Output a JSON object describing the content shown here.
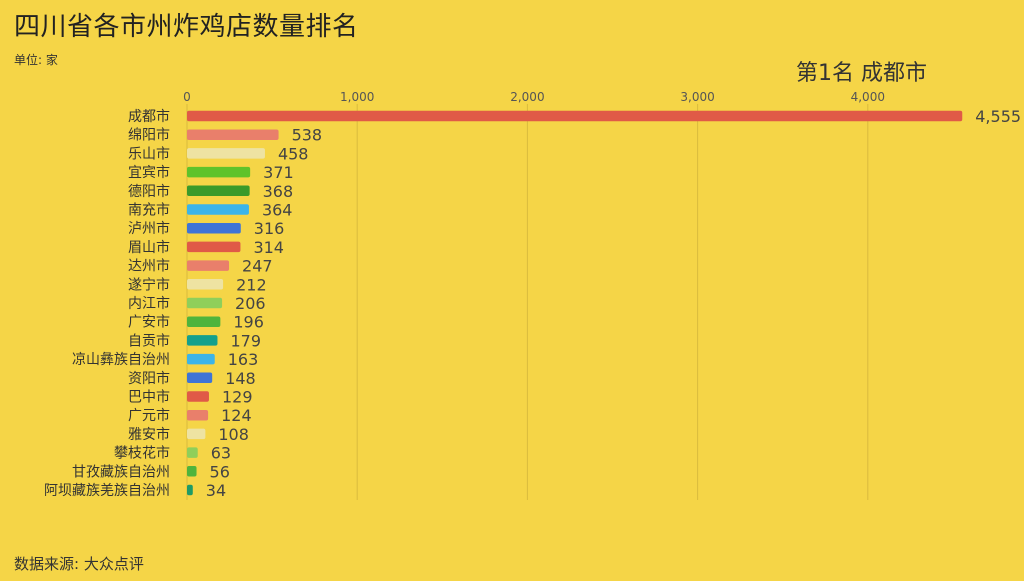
{
  "title": "四川省各市州炸鸡店数量排名",
  "unit_label": "单位: 家",
  "rank_label": "第1名  成都市",
  "source_label": "数据来源: 大众点评",
  "chart_data": {
    "type": "bar",
    "orientation": "horizontal",
    "x_range": [
      0,
      4200
    ],
    "x_ticks": [
      {
        "value": 0,
        "label": "0"
      },
      {
        "value": 1000,
        "label": "1,000"
      },
      {
        "value": 2000,
        "label": "2,000"
      },
      {
        "value": 3000,
        "label": "3,000"
      },
      {
        "value": 4000,
        "label": "4,000"
      }
    ],
    "grid": true,
    "categories": [
      "成都市",
      "绵阳市",
      "乐山市",
      "宜宾市",
      "德阳市",
      "南充市",
      "泸州市",
      "眉山市",
      "达州市",
      "遂宁市",
      "内江市",
      "广安市",
      "自贡市",
      "凉山彝族自治州",
      "资阳市",
      "巴中市",
      "广元市",
      "雅安市",
      "攀枝花市",
      "甘孜藏族自治州",
      "阿坝藏族羌族自治州"
    ],
    "values": [
      4555,
      538,
      458,
      371,
      368,
      364,
      316,
      314,
      247,
      212,
      206,
      196,
      179,
      163,
      148,
      129,
      124,
      108,
      63,
      56,
      34
    ],
    "value_labels": [
      "4,555",
      "538",
      "458",
      "371",
      "368",
      "364",
      "316",
      "314",
      "247",
      "212",
      "206",
      "196",
      "179",
      "163",
      "148",
      "129",
      "124",
      "108",
      "63",
      "56",
      "34"
    ],
    "colors": [
      "#e05a47",
      "#e97f6b",
      "#eee3a2",
      "#5fc32a",
      "#3a9a2a",
      "#3cb4e8",
      "#3f74d6",
      "#e05a47",
      "#e97f6b",
      "#eee3a2",
      "#8fcf5a",
      "#4fb43c",
      "#14a08c",
      "#3cb4e8",
      "#3f74d6",
      "#e05a47",
      "#e97f6b",
      "#eee3a2",
      "#8fcf5a",
      "#4fb43c",
      "#1f9b66"
    ]
  }
}
